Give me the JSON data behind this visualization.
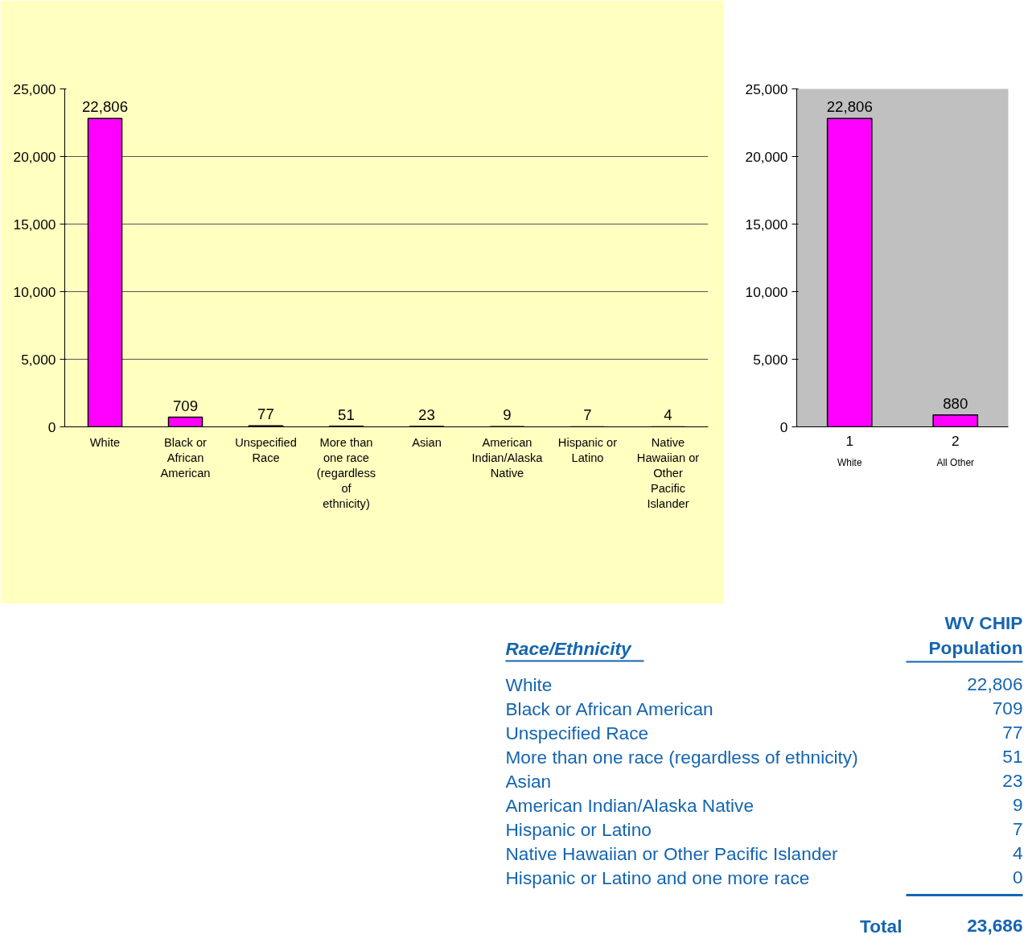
{
  "chart_data": [
    {
      "type": "bar",
      "categories": [
        "White",
        "Black or African American",
        "Unspecified Race",
        "More than one race (regardless of ethnicity)",
        "Asian",
        "American Indian/Alaska Native",
        "Hispanic or Latino",
        "Native Hawaiian or Other Pacific Islander"
      ],
      "values": [
        22806,
        709,
        77,
        51,
        23,
        9,
        7,
        4
      ],
      "value_labels": [
        "22,806",
        "709",
        "77",
        "51",
        "23",
        "9",
        "7",
        "4"
      ],
      "color": "#ff00ff",
      "ylim": [
        0,
        25000
      ],
      "yticks": [
        0,
        {
          "value": 5000,
          "label": "5,000"
        },
        {
          "value": 10000,
          "label": "10,000"
        },
        {
          "value": 15000,
          "label": "15,000"
        },
        {
          "value": 20000,
          "label": "20,000"
        },
        {
          "value": 25000,
          "label": "25,000"
        }
      ],
      "grid": "y"
    },
    {
      "type": "bar",
      "categories": [
        "1",
        "2"
      ],
      "values": [
        22806,
        880
      ],
      "value_labels": [
        "22,806",
        "880"
      ],
      "color": "#ff00ff",
      "ylim": [
        0,
        25000
      ],
      "yticks": [
        0,
        {
          "value": 5000,
          "label": "5,000"
        },
        {
          "value": 10000,
          "label": "10,000"
        },
        {
          "value": 15000,
          "label": "15,000"
        },
        {
          "value": 20000,
          "label": "20,000"
        },
        {
          "value": 25000,
          "label": "25,000"
        }
      ],
      "grid": false,
      "annotations": [
        "White",
        "All Other"
      ]
    },
    {
      "type": "other",
      "xlabel": "Race/Ethnicity",
      "ylabel": "WV CHIP Population",
      "categories": [
        "White",
        "Black or African American",
        "Unspecified Race",
        "More than one race (regardless of ethnicity)",
        "Asian",
        "American Indian/Alaska Native",
        "Hispanic or Latino",
        "Native Hawaiian or Other Pacific Islander",
        "Hispanic or Latino and one more race"
      ],
      "values": [
        22806,
        709,
        77,
        51,
        23,
        9,
        7,
        4,
        0
      ],
      "value_labels": [
        "22,806",
        "709",
        "77",
        "51",
        "23",
        "9",
        "7",
        "4",
        "0"
      ],
      "annotations": [
        "Total",
        "23,686"
      ]
    }
  ]
}
